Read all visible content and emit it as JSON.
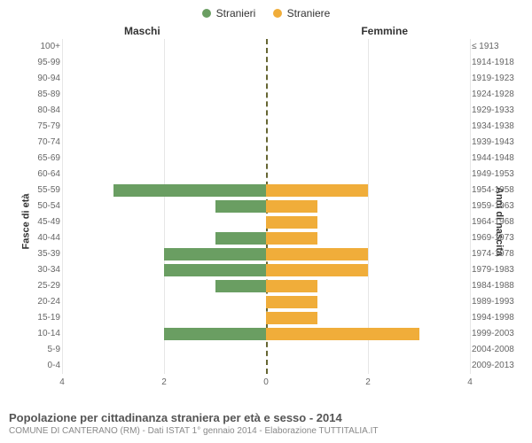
{
  "legend": {
    "male": {
      "label": "Stranieri",
      "color": "#6a9e62"
    },
    "female": {
      "label": "Straniere",
      "color": "#f0ad3a"
    }
  },
  "headers": {
    "left": "Maschi",
    "right": "Femmine"
  },
  "axis_titles": {
    "left": "Fasce di età",
    "right": "Anni di nascita"
  },
  "x_axis": {
    "max": 4,
    "ticks": [
      4,
      2,
      0,
      2,
      4
    ]
  },
  "grid_color": "#e6e6e6",
  "center_line_color": "#666633",
  "rows": [
    {
      "age": "100+",
      "birth": "≤ 1913",
      "m": 0,
      "f": 0
    },
    {
      "age": "95-99",
      "birth": "1914-1918",
      "m": 0,
      "f": 0
    },
    {
      "age": "90-94",
      "birth": "1919-1923",
      "m": 0,
      "f": 0
    },
    {
      "age": "85-89",
      "birth": "1924-1928",
      "m": 0,
      "f": 0
    },
    {
      "age": "80-84",
      "birth": "1929-1933",
      "m": 0,
      "f": 0
    },
    {
      "age": "75-79",
      "birth": "1934-1938",
      "m": 0,
      "f": 0
    },
    {
      "age": "70-74",
      "birth": "1939-1943",
      "m": 0,
      "f": 0
    },
    {
      "age": "65-69",
      "birth": "1944-1948",
      "m": 0,
      "f": 0
    },
    {
      "age": "60-64",
      "birth": "1949-1953",
      "m": 0,
      "f": 0
    },
    {
      "age": "55-59",
      "birth": "1954-1958",
      "m": 3,
      "f": 2
    },
    {
      "age": "50-54",
      "birth": "1959-1963",
      "m": 1,
      "f": 1
    },
    {
      "age": "45-49",
      "birth": "1964-1968",
      "m": 0,
      "f": 1
    },
    {
      "age": "40-44",
      "birth": "1969-1973",
      "m": 1,
      "f": 1
    },
    {
      "age": "35-39",
      "birth": "1974-1978",
      "m": 2,
      "f": 2
    },
    {
      "age": "30-34",
      "birth": "1979-1983",
      "m": 2,
      "f": 2
    },
    {
      "age": "25-29",
      "birth": "1984-1988",
      "m": 1,
      "f": 1
    },
    {
      "age": "20-24",
      "birth": "1989-1993",
      "m": 0,
      "f": 1
    },
    {
      "age": "15-19",
      "birth": "1994-1998",
      "m": 0,
      "f": 1
    },
    {
      "age": "10-14",
      "birth": "1999-2003",
      "m": 2,
      "f": 3
    },
    {
      "age": "5-9",
      "birth": "2004-2008",
      "m": 0,
      "f": 0
    },
    {
      "age": "0-4",
      "birth": "2009-2013",
      "m": 0,
      "f": 0
    }
  ],
  "footer": {
    "title": "Popolazione per cittadinanza straniera per età e sesso - 2014",
    "subtitle": "COMUNE DI CANTERANO (RM) - Dati ISTAT 1° gennaio 2014 - Elaborazione TUTTITALIA.IT"
  }
}
